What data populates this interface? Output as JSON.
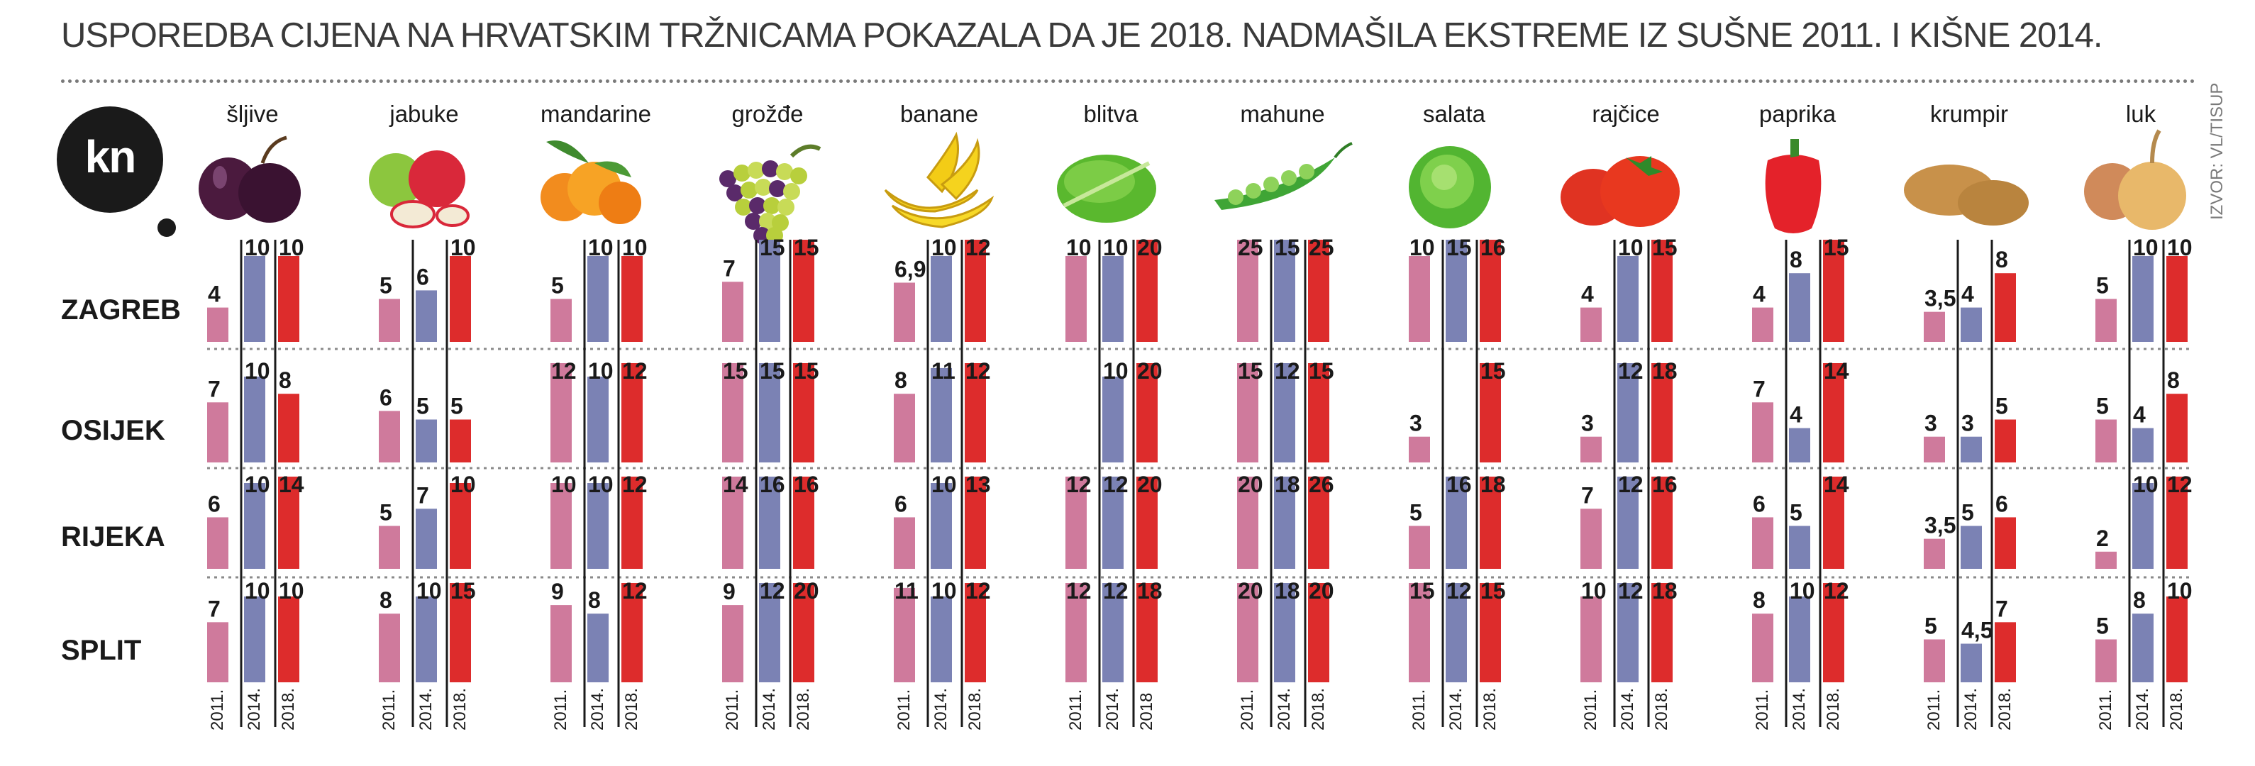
{
  "title": "USPOREDBA CIJENA NA HRVATSKIM TRŽNICAMA POKAZALA DA JE 2018. NADMAŠILA EKSTREME IZ SUŠNE 2011. I KIŠNE 2014.",
  "logo_text": "kn",
  "source": "IZVOR: VL/TISUP",
  "colors": {
    "y2011": "#cf7a9c",
    "y2014": "#7b82b4",
    "y2018": "#dd2c2c",
    "text": "#1a1a1a",
    "axis": "#1a1a1a",
    "grid": "#8a8a8a"
  },
  "chart_data": {
    "type": "bar",
    "title": "USPOREDBA CIJENA NA HRVATSKIM TRŽNICAMA POKAZALA DA JE 2018. NADMAŠILA EKSTREME IZ SUŠNE 2011. I KIŠNE 2014.",
    "ylabel": "kn",
    "ylim": [
      0,
      26
    ],
    "cities": [
      "ZAGREB",
      "OSIJEK",
      "RIJEKA",
      "SPLIT"
    ],
    "products": [
      {
        "name": "šljive",
        "icon": "plum-icon",
        "years": [
          "2011.",
          "2014.",
          "2018."
        ],
        "values": {
          "ZAGREB": [
            "4",
            "10",
            "10"
          ],
          "OSIJEK": [
            "7",
            "10",
            "8"
          ],
          "RIJEKA": [
            "6",
            "10",
            "14"
          ],
          "SPLIT": [
            "7",
            "10",
            "10"
          ]
        }
      },
      {
        "name": "jabuke",
        "icon": "apple-icon",
        "years": [
          "2011.",
          "2014.",
          "2018."
        ],
        "values": {
          "ZAGREB": [
            "5",
            "6",
            "10"
          ],
          "OSIJEK": [
            "6",
            "5",
            "5"
          ],
          "RIJEKA": [
            "5",
            "7",
            "10"
          ],
          "SPLIT": [
            "8",
            "10",
            "15"
          ]
        }
      },
      {
        "name": "mandarine",
        "icon": "tangerine-icon",
        "years": [
          "2011.",
          "2014.",
          "2018."
        ],
        "values": {
          "ZAGREB": [
            "5",
            "10",
            "10"
          ],
          "OSIJEK": [
            "12",
            "10",
            "12"
          ],
          "RIJEKA": [
            "10",
            "10",
            "12"
          ],
          "SPLIT": [
            "9",
            "8",
            "12"
          ]
        }
      },
      {
        "name": "grožđe",
        "icon": "grapes-icon",
        "years": [
          "2011.",
          "2014.",
          "2018."
        ],
        "values": {
          "ZAGREB": [
            "7",
            "15",
            "15"
          ],
          "OSIJEK": [
            "15",
            "15",
            "15"
          ],
          "RIJEKA": [
            "14",
            "16",
            "16"
          ],
          "SPLIT": [
            "9",
            "12",
            "20"
          ]
        }
      },
      {
        "name": "banane",
        "icon": "banana-icon",
        "years": [
          "2011.",
          "2014.",
          "2018."
        ],
        "values": {
          "ZAGREB": [
            "6,9",
            "10",
            "12"
          ],
          "OSIJEK": [
            "8",
            "11",
            "12"
          ],
          "RIJEKA": [
            "6",
            "10",
            "13"
          ],
          "SPLIT": [
            "11",
            "10",
            "12"
          ]
        }
      },
      {
        "name": "blitva",
        "icon": "chard-icon",
        "years": [
          "2011.",
          "2014.",
          "2018"
        ],
        "values": {
          "ZAGREB": [
            "10",
            "10",
            "20"
          ],
          "OSIJEK": [
            "",
            "10",
            "20"
          ],
          "RIJEKA": [
            "12",
            "12",
            "20"
          ],
          "SPLIT": [
            "12",
            "12",
            "18"
          ]
        }
      },
      {
        "name": "mahune",
        "icon": "green-beans-icon",
        "years": [
          "2011.",
          "2014.",
          "2018."
        ],
        "values": {
          "ZAGREB": [
            "25",
            "15",
            "25"
          ],
          "OSIJEK": [
            "15",
            "12",
            "15"
          ],
          "RIJEKA": [
            "20",
            "18",
            "26"
          ],
          "SPLIT": [
            "20",
            "18",
            "20"
          ]
        }
      },
      {
        "name": "salata",
        "icon": "lettuce-icon",
        "years": [
          "2011.",
          "2014.",
          "2018."
        ],
        "values": {
          "ZAGREB": [
            "10",
            "15",
            "16"
          ],
          "OSIJEK": [
            "3",
            "",
            "15"
          ],
          "RIJEKA": [
            "5",
            "16",
            "18"
          ],
          "SPLIT": [
            "15",
            "12",
            "15"
          ]
        }
      },
      {
        "name": "rajčice",
        "icon": "tomato-icon",
        "years": [
          "2011.",
          "2014.",
          "2018."
        ],
        "values": {
          "ZAGREB": [
            "4",
            "10",
            "15"
          ],
          "OSIJEK": [
            "3",
            "12",
            "18"
          ],
          "RIJEKA": [
            "7",
            "12",
            "16"
          ],
          "SPLIT": [
            "10",
            "12",
            "18"
          ]
        }
      },
      {
        "name": "paprika",
        "icon": "pepper-icon",
        "years": [
          "2011.",
          "2014.",
          "2018."
        ],
        "values": {
          "ZAGREB": [
            "4",
            "8",
            "15"
          ],
          "OSIJEK": [
            "7",
            "4",
            "14"
          ],
          "RIJEKA": [
            "6",
            "5",
            "14"
          ],
          "SPLIT": [
            "8",
            "10",
            "12"
          ]
        }
      },
      {
        "name": "krumpir",
        "icon": "potato-icon",
        "years": [
          "2011.",
          "2014.",
          "2018."
        ],
        "values": {
          "ZAGREB": [
            "3,5",
            "4",
            "8"
          ],
          "OSIJEK": [
            "3",
            "3",
            "5"
          ],
          "RIJEKA": [
            "3,5",
            "5",
            "6"
          ],
          "SPLIT": [
            "5",
            "4,5",
            "7"
          ]
        }
      },
      {
        "name": "luk",
        "icon": "onion-icon",
        "years": [
          "2011.",
          "2014.",
          "2018."
        ],
        "values": {
          "ZAGREB": [
            "5",
            "10",
            "10"
          ],
          "OSIJEK": [
            "5",
            "4",
            "8"
          ],
          "RIJEKA": [
            "2",
            "10",
            "12"
          ],
          "SPLIT": [
            "5",
            "8",
            "10"
          ]
        }
      }
    ]
  }
}
